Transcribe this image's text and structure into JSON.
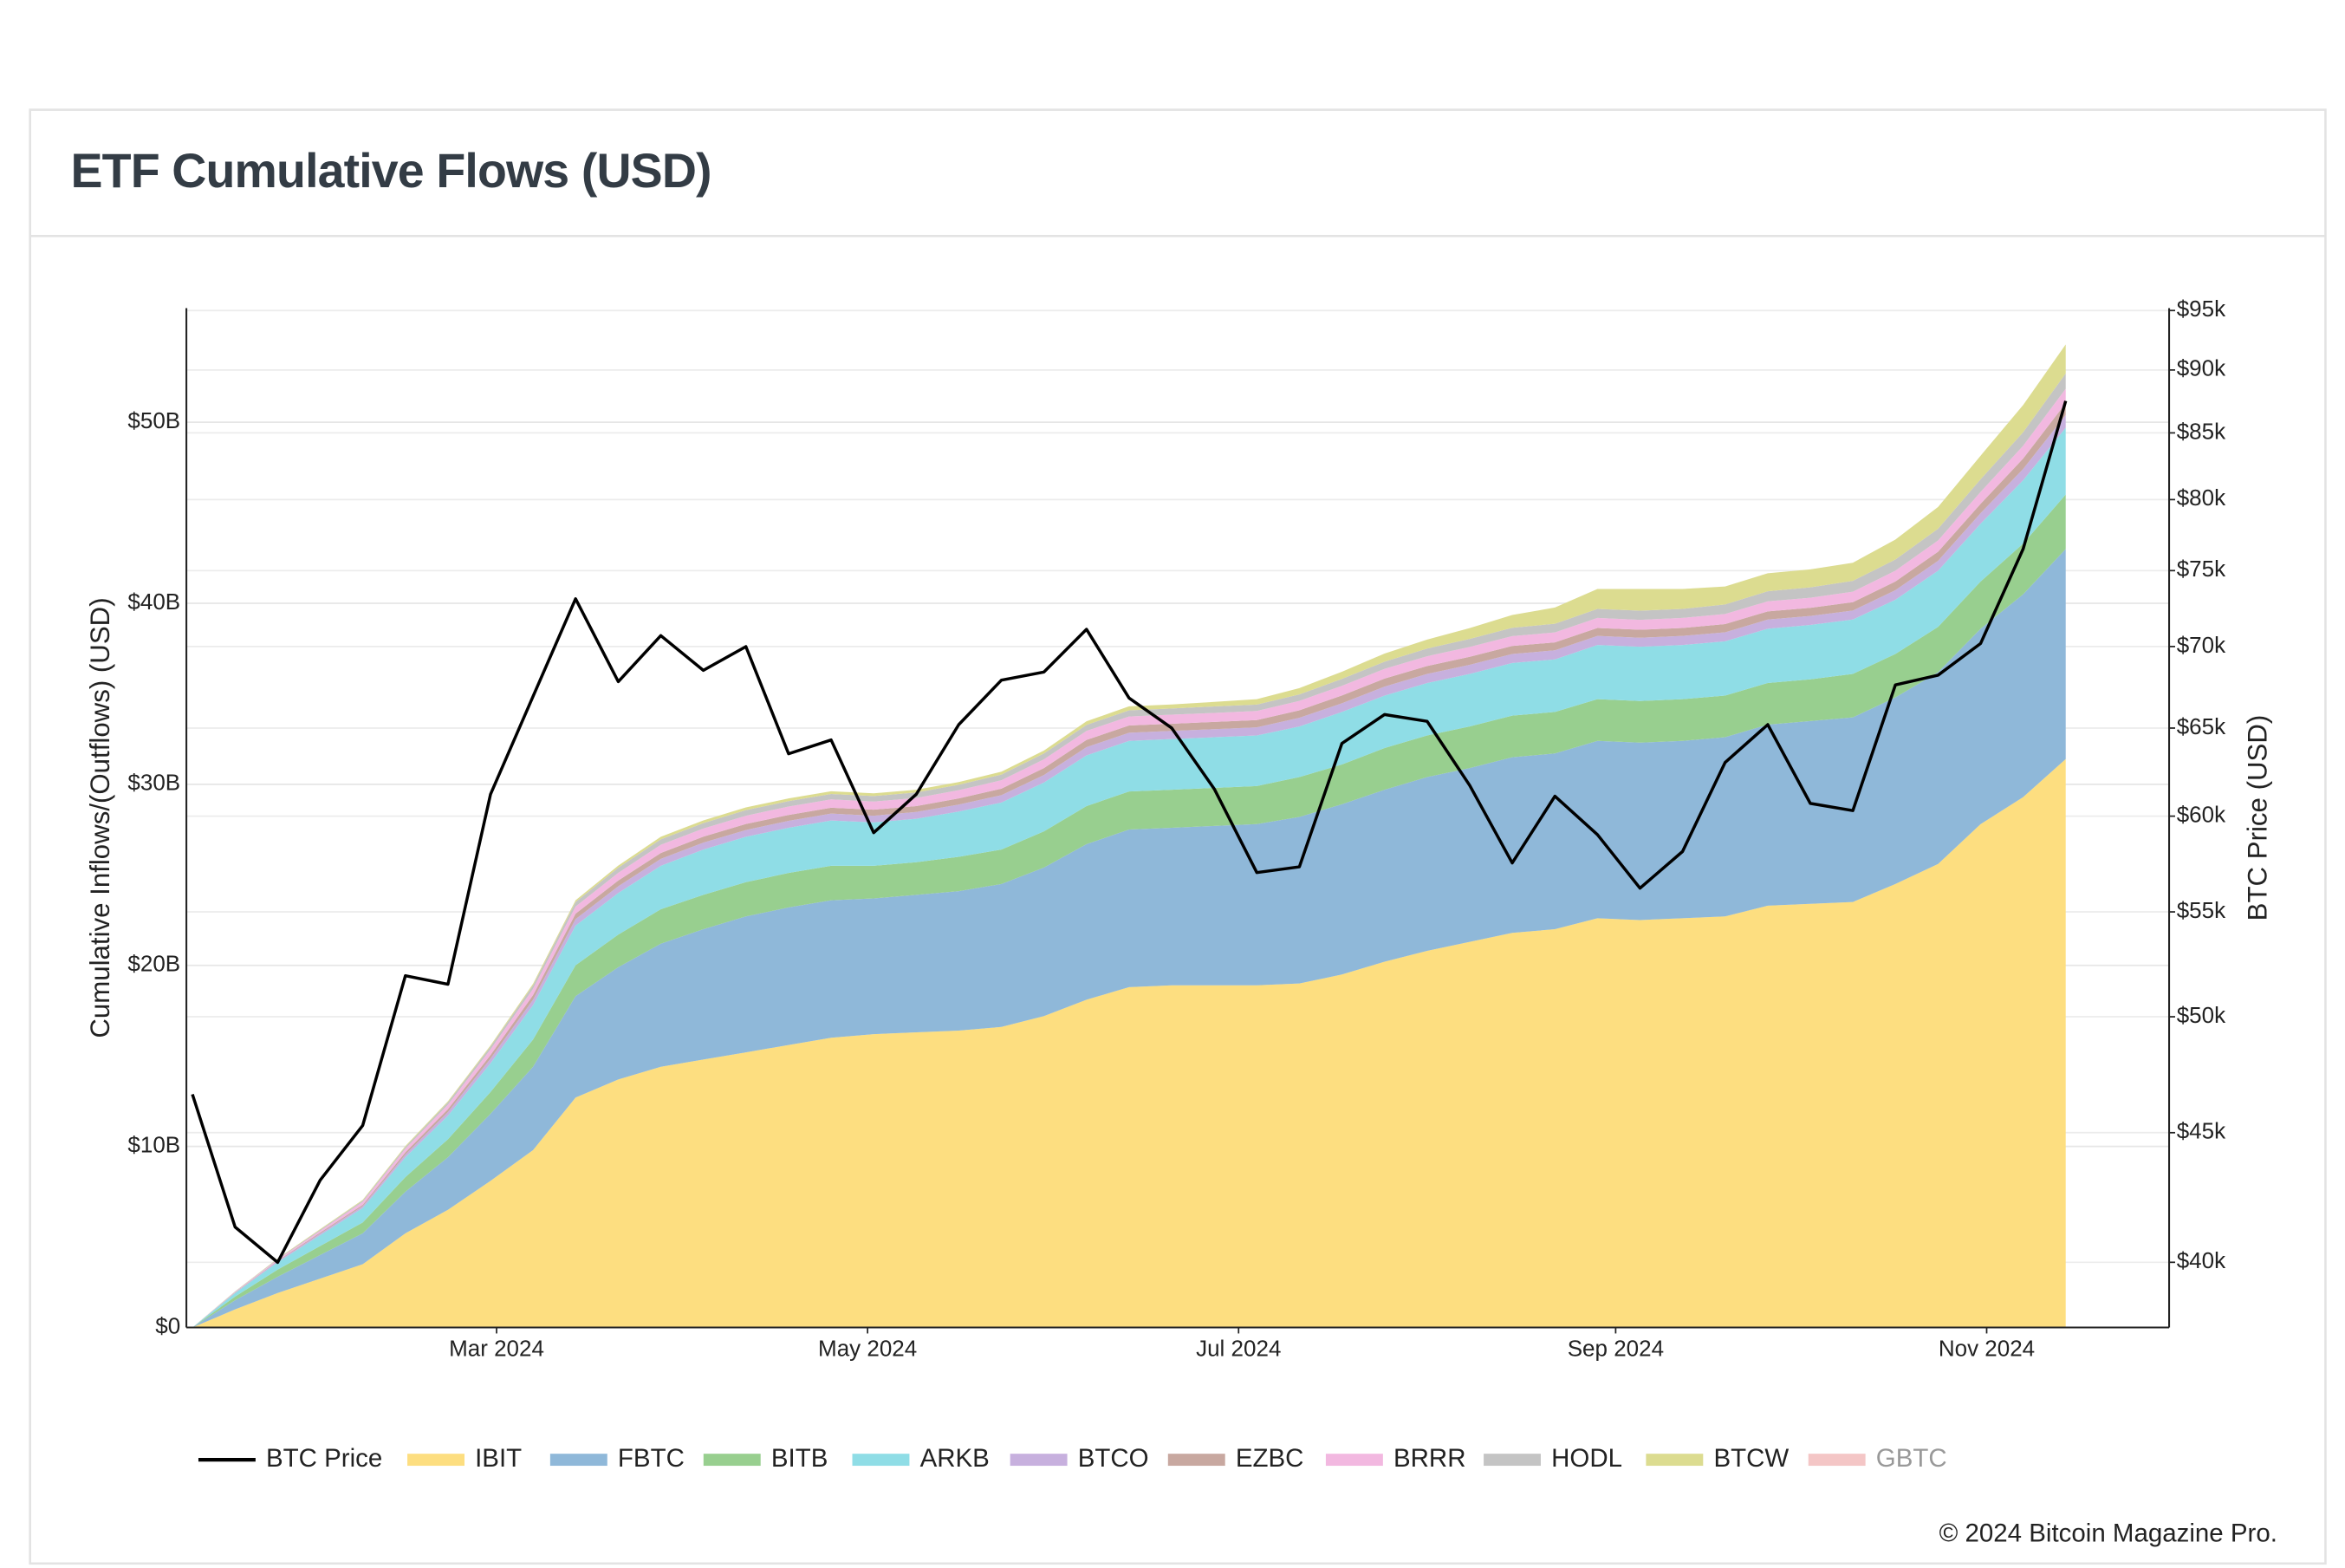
{
  "chart_data": {
    "type": "stacked_area",
    "title": "ETF Cumulative Flows (USD)",
    "y_label": "Cumulative Inflows/(Outflows) (USD)",
    "y2_label": "BTC Price (USD)",
    "copyright": "© 2024 Bitcoin Magazine Pro.",
    "x": [
      "2024-01-11",
      "2024-01-18",
      "2024-01-25",
      "2024-02-01",
      "2024-02-08",
      "2024-02-15",
      "2024-02-22",
      "2024-02-29",
      "2024-03-07",
      "2024-03-14",
      "2024-03-21",
      "2024-03-28",
      "2024-04-04",
      "2024-04-11",
      "2024-04-18",
      "2024-04-25",
      "2024-05-02",
      "2024-05-09",
      "2024-05-16",
      "2024-05-23",
      "2024-05-30",
      "2024-06-06",
      "2024-06-13",
      "2024-06-20",
      "2024-06-27",
      "2024-07-04",
      "2024-07-11",
      "2024-07-18",
      "2024-07-25",
      "2024-08-01",
      "2024-08-08",
      "2024-08-15",
      "2024-08-22",
      "2024-08-29",
      "2024-09-05",
      "2024-09-12",
      "2024-09-19",
      "2024-09-26",
      "2024-10-03",
      "2024-10-10",
      "2024-10-17",
      "2024-10-24",
      "2024-10-31",
      "2024-11-07",
      "2024-11-14"
    ],
    "xlim": [
      "2024-01-10",
      "2024-12-01"
    ],
    "xticks": [
      {
        "value": "2024-03-01",
        "label": "Mar 2024"
      },
      {
        "value": "2024-05-01",
        "label": "May 2024"
      },
      {
        "value": "2024-07-01",
        "label": "Jul 2024"
      },
      {
        "value": "2024-09-01",
        "label": "Sep 2024"
      },
      {
        "value": "2024-11-01",
        "label": "Nov 2024"
      }
    ],
    "ylim": [
      0,
      56.3
    ],
    "yticks": [
      {
        "value": 0,
        "label": "$0"
      },
      {
        "value": 10,
        "label": "$10B"
      },
      {
        "value": 20,
        "label": "$20B"
      },
      {
        "value": 30,
        "label": "$30B"
      },
      {
        "value": 40,
        "label": "$40B"
      },
      {
        "value": 50,
        "label": "$50B"
      }
    ],
    "y2lim": [
      37700,
      95200
    ],
    "y2_log": true,
    "y2ticks": [
      {
        "value": 40000,
        "label": "$40k"
      },
      {
        "value": 45000,
        "label": "$45k"
      },
      {
        "value": 50000,
        "label": "$50k"
      },
      {
        "value": 55000,
        "label": "$55k"
      },
      {
        "value": 60000,
        "label": "$60k"
      },
      {
        "value": 65000,
        "label": "$65k"
      },
      {
        "value": 70000,
        "label": "$70k"
      },
      {
        "value": 75000,
        "label": "$75k"
      },
      {
        "value": 80000,
        "label": "$80k"
      },
      {
        "value": 85000,
        "label": "$85k"
      },
      {
        "value": 90000,
        "label": "$90k"
      },
      {
        "value": 95000,
        "label": "$95k"
      }
    ],
    "grid": true,
    "legend": "bottom",
    "series": [
      {
        "name": "BTC Price",
        "color": "#000000",
        "axis": "y2",
        "kind": "line",
        "values": [
          46600,
          41300,
          40000,
          43100,
          45300,
          51900,
          51500,
          61200,
          66900,
          73100,
          67800,
          70700,
          68500,
          70000,
          63500,
          64300,
          59100,
          61200,
          65200,
          67900,
          68400,
          71100,
          66800,
          65000,
          61500,
          57000,
          57300,
          64100,
          65800,
          65400,
          61700,
          57500,
          61100,
          59000,
          56200,
          58100,
          63000,
          65200,
          60700,
          60300,
          67600,
          68200,
          70200,
          76500,
          87500
        ]
      },
      {
        "name": "IBIT",
        "color": "#fdde80",
        "values": [
          0,
          1.0,
          1.9,
          2.7,
          3.5,
          5.2,
          6.5,
          8.1,
          9.8,
          12.7,
          13.7,
          14.4,
          14.8,
          15.2,
          15.6,
          16.0,
          16.2,
          16.3,
          16.4,
          16.6,
          17.2,
          18.1,
          18.8,
          18.9,
          18.9,
          18.9,
          19.0,
          19.5,
          20.2,
          20.8,
          21.3,
          21.8,
          22.0,
          22.6,
          22.5,
          22.6,
          22.7,
          23.3,
          23.4,
          23.5,
          24.5,
          25.6,
          27.8,
          29.3,
          31.4
        ]
      },
      {
        "name": "FBTC",
        "color": "#8fb8d9",
        "values": [
          0,
          0.5,
          0.9,
          1.3,
          1.7,
          2.3,
          2.9,
          3.7,
          4.6,
          5.6,
          6.2,
          6.8,
          7.2,
          7.5,
          7.6,
          7.6,
          7.5,
          7.6,
          7.7,
          7.9,
          8.2,
          8.6,
          8.7,
          8.7,
          8.8,
          8.9,
          9.2,
          9.4,
          9.5,
          9.6,
          9.6,
          9.7,
          9.7,
          9.8,
          9.8,
          9.8,
          9.9,
          10.0,
          10.1,
          10.2,
          10.3,
          10.6,
          10.8,
          11.2,
          11.6
        ]
      },
      {
        "name": "BITB",
        "color": "#98cf8f",
        "values": [
          0,
          0.2,
          0.4,
          0.5,
          0.6,
          0.8,
          1.0,
          1.2,
          1.5,
          1.7,
          1.8,
          1.9,
          1.9,
          1.9,
          1.9,
          1.9,
          1.8,
          1.8,
          1.9,
          1.9,
          2.0,
          2.1,
          2.1,
          2.1,
          2.1,
          2.1,
          2.2,
          2.2,
          2.3,
          2.3,
          2.3,
          2.3,
          2.3,
          2.3,
          2.3,
          2.3,
          2.3,
          2.3,
          2.3,
          2.4,
          2.4,
          2.5,
          2.6,
          2.8,
          3.0
        ]
      },
      {
        "name": "ARKB",
        "color": "#8fdde6",
        "values": [
          0,
          0.2,
          0.4,
          0.6,
          0.8,
          1.1,
          1.3,
          1.6,
          1.9,
          2.2,
          2.3,
          2.4,
          2.5,
          2.5,
          2.5,
          2.5,
          2.4,
          2.4,
          2.5,
          2.6,
          2.7,
          2.8,
          2.8,
          2.8,
          2.8,
          2.8,
          2.8,
          2.9,
          2.9,
          2.9,
          2.9,
          2.9,
          2.9,
          3.0,
          3.0,
          3.0,
          3.0,
          3.0,
          3.0,
          3.0,
          3.0,
          3.1,
          3.2,
          3.5,
          3.7
        ]
      },
      {
        "name": "BTCO",
        "color": "#c7b0de",
        "values": [
          0,
          0.02,
          0.05,
          0.08,
          0.1,
          0.15,
          0.2,
          0.25,
          0.3,
          0.35,
          0.37,
          0.38,
          0.38,
          0.38,
          0.38,
          0.38,
          0.37,
          0.37,
          0.38,
          0.4,
          0.42,
          0.45,
          0.45,
          0.45,
          0.45,
          0.45,
          0.47,
          0.48,
          0.5,
          0.5,
          0.5,
          0.5,
          0.5,
          0.5,
          0.5,
          0.5,
          0.5,
          0.5,
          0.5,
          0.5,
          0.52,
          0.55,
          0.58,
          0.62,
          0.7
        ]
      },
      {
        "name": "EZBC",
        "color": "#c8a8a0",
        "values": [
          0,
          0.02,
          0.04,
          0.06,
          0.08,
          0.12,
          0.16,
          0.2,
          0.25,
          0.3,
          0.32,
          0.33,
          0.33,
          0.33,
          0.33,
          0.33,
          0.33,
          0.33,
          0.34,
          0.36,
          0.38,
          0.4,
          0.4,
          0.4,
          0.4,
          0.4,
          0.42,
          0.43,
          0.44,
          0.44,
          0.44,
          0.44,
          0.44,
          0.44,
          0.44,
          0.44,
          0.45,
          0.45,
          0.45,
          0.46,
          0.48,
          0.5,
          0.52,
          0.58,
          0.65
        ]
      },
      {
        "name": "BRRR",
        "color": "#f2b8e0",
        "values": [
          0,
          0.03,
          0.06,
          0.1,
          0.15,
          0.2,
          0.25,
          0.3,
          0.35,
          0.4,
          0.42,
          0.45,
          0.45,
          0.46,
          0.46,
          0.46,
          0.45,
          0.45,
          0.46,
          0.47,
          0.48,
          0.5,
          0.5,
          0.5,
          0.5,
          0.5,
          0.52,
          0.53,
          0.54,
          0.54,
          0.55,
          0.55,
          0.55,
          0.55,
          0.55,
          0.55,
          0.56,
          0.56,
          0.56,
          0.58,
          0.6,
          0.62,
          0.65,
          0.7,
          0.8
        ]
      },
      {
        "name": "HODL",
        "color": "#c4c4c4",
        "values": [
          0,
          0.02,
          0.04,
          0.06,
          0.08,
          0.1,
          0.13,
          0.16,
          0.2,
          0.25,
          0.28,
          0.3,
          0.3,
          0.3,
          0.3,
          0.3,
          0.3,
          0.3,
          0.3,
          0.31,
          0.32,
          0.33,
          0.34,
          0.34,
          0.35,
          0.35,
          0.36,
          0.38,
          0.4,
          0.42,
          0.44,
          0.46,
          0.48,
          0.5,
          0.5,
          0.5,
          0.52,
          0.55,
          0.57,
          0.6,
          0.62,
          0.65,
          0.7,
          0.75,
          0.85
        ]
      },
      {
        "name": "BTCW",
        "color": "#dcdc90",
        "values": [
          0,
          0.01,
          0.02,
          0.03,
          0.04,
          0.05,
          0.06,
          0.07,
          0.08,
          0.1,
          0.12,
          0.14,
          0.15,
          0.15,
          0.15,
          0.15,
          0.15,
          0.15,
          0.15,
          0.16,
          0.17,
          0.2,
          0.22,
          0.22,
          0.25,
          0.3,
          0.35,
          0.4,
          0.45,
          0.5,
          0.6,
          0.7,
          0.9,
          1.1,
          1.2,
          1.1,
          1.0,
          1.0,
          1.0,
          1.0,
          1.1,
          1.2,
          1.3,
          1.5,
          1.6
        ]
      },
      {
        "name": "GBTC",
        "color": "#f4c6c6",
        "visible": false
      }
    ]
  }
}
